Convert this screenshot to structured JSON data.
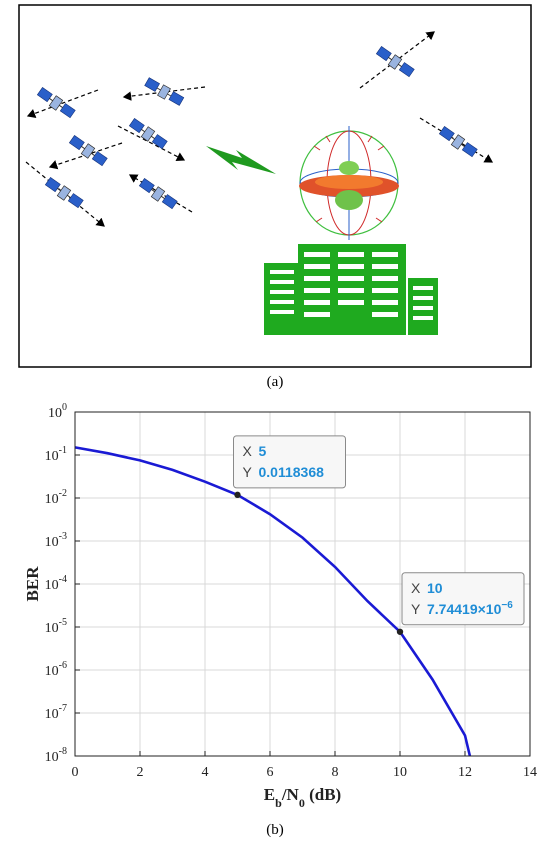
{
  "panel_a": {
    "label": "(a)",
    "colors": {
      "building": "#1faa1f",
      "lightning": "#1f9a1f",
      "satellite": "#2a5fc9",
      "arrow": "#000000"
    },
    "icons": [
      "satellite-icon",
      "lightning-icon",
      "building-icon",
      "radiation-pattern-icon",
      "trajectory-arrow-icon"
    ]
  },
  "panel_b": {
    "label": "(b)"
  },
  "chart_data": {
    "type": "line",
    "xlabel": "E_b/N_0 (dB)",
    "ylabel": "BER",
    "xlim": [
      0,
      14
    ],
    "ylim": [
      1e-08,
      1
    ],
    "yscale": "log",
    "grid": true,
    "x_ticks": [
      "0",
      "2",
      "4",
      "6",
      "8",
      "10",
      "12",
      "14"
    ],
    "y_ticks": [
      {
        "base": "10",
        "exp": "0"
      },
      {
        "base": "10",
        "exp": "-1"
      },
      {
        "base": "10",
        "exp": "-2"
      },
      {
        "base": "10",
        "exp": "-3"
      },
      {
        "base": "10",
        "exp": "-4"
      },
      {
        "base": "10",
        "exp": "-5"
      },
      {
        "base": "10",
        "exp": "-6"
      },
      {
        "base": "10",
        "exp": "-7"
      },
      {
        "base": "10",
        "exp": "-8"
      }
    ],
    "series": [
      {
        "color": "#1a1ad4",
        "x": [
          0,
          1,
          2,
          3,
          4,
          5,
          6,
          7,
          8,
          9,
          10,
          11,
          12,
          12.15
        ],
        "y": [
          0.15,
          0.11,
          0.075,
          0.045,
          0.024,
          0.0118368,
          0.0042,
          0.0012,
          0.00025,
          4e-05,
          7.74419e-06,
          6e-07,
          3e-08,
          1e-08
        ]
      }
    ],
    "datatips": [
      {
        "x_key": "X",
        "x_val": "5",
        "y_key": "Y",
        "y_val": "0.0118368",
        "x": 5,
        "y": 0.0118368
      },
      {
        "x_key": "X",
        "x_val": "10",
        "y_key": "Y",
        "y_val": "7.74419×10",
        "y_exp": "−6",
        "x": 10,
        "y": 7.74419e-06
      }
    ]
  }
}
